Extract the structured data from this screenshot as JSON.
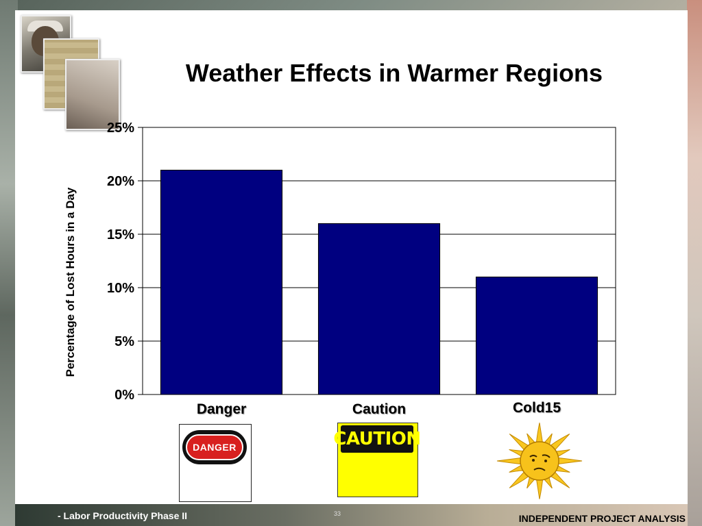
{
  "slide": {
    "title": "Weather Effects in Warmer Regions",
    "footer_left": "- Labor Productivity Phase II",
    "footer_page": "33",
    "footer_right": "INDEPENDENT PROJECT ANALYSIS"
  },
  "signs": {
    "danger_text": "DANGER",
    "caution_text": "CAUTION"
  },
  "chart_data": {
    "type": "bar",
    "title": "Weather Effects in Warmer Regions",
    "categories": [
      "Danger",
      "Caution",
      "Cold15"
    ],
    "values": [
      21,
      16,
      11
    ],
    "value_unit": "%",
    "ylabel": "Percentage of Lost Hours in a Day",
    "xlabel": "",
    "ylim": [
      0,
      25
    ],
    "yticks": [
      0,
      5,
      10,
      15,
      20,
      25
    ],
    "ytick_labels": [
      "0%",
      "5%",
      "10%",
      "15%",
      "20%",
      "25%"
    ],
    "grid": true,
    "legend": "none",
    "bar_color": "#000080"
  }
}
